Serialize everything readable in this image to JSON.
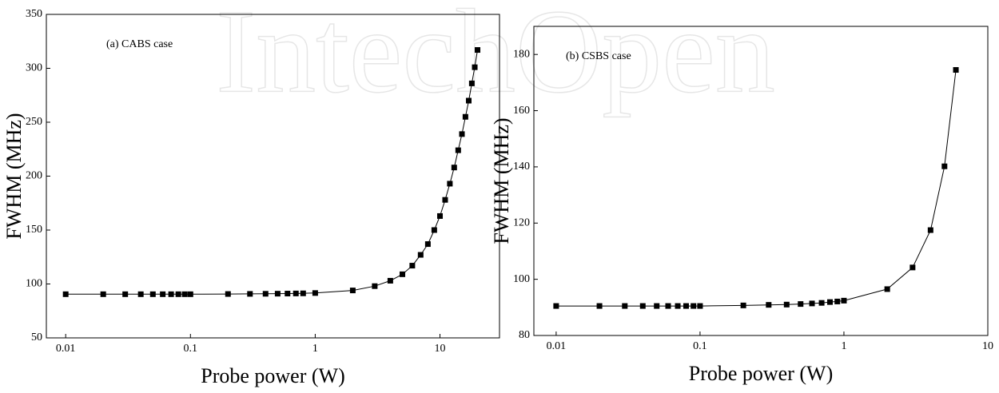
{
  "watermark": "IntechOpen",
  "chart_data": [
    {
      "type": "line",
      "annotation": "(a) CABS case",
      "x_label": "Probe power (W)",
      "y_label": "FWHM (MHz)",
      "log_x": true,
      "color": "#000000",
      "x": [
        0.01,
        0.02,
        0.03,
        0.04,
        0.05,
        0.06,
        0.07,
        0.08,
        0.09,
        0.1,
        0.2,
        0.3,
        0.4,
        0.5,
        0.6,
        0.7,
        0.8,
        1,
        2,
        3,
        4,
        5,
        6,
        7,
        8,
        9,
        10,
        11,
        12,
        13,
        14,
        15,
        16,
        17,
        18,
        19,
        20
      ],
      "values": [
        90.5,
        90.5,
        90.5,
        90.5,
        90.5,
        90.5,
        90.5,
        90.5,
        90.5,
        90.5,
        90.7,
        90.8,
        90.9,
        91,
        91.1,
        91.2,
        91.3,
        91.6,
        94,
        98,
        103,
        109,
        117,
        127,
        137,
        150,
        163,
        178,
        193,
        208,
        224,
        239,
        255,
        270,
        286,
        301,
        317
      ],
      "xlim": [
        0.007,
        30
      ],
      "xticks": [
        0.01,
        0.1,
        1,
        10
      ],
      "ylim": [
        50,
        350
      ],
      "yticks": [
        50,
        100,
        150,
        200,
        250,
        300,
        350
      ]
    },
    {
      "type": "line",
      "annotation": "(b) CSBS case",
      "x_label": "Probe power (W)",
      "y_label": "FWHM (MHz)",
      "log_x": true,
      "color": "#000000",
      "x": [
        0.01,
        0.02,
        0.03,
        0.04,
        0.05,
        0.06,
        0.07,
        0.08,
        0.09,
        0.1,
        0.2,
        0.3,
        0.4,
        0.5,
        0.6,
        0.7,
        0.8,
        0.9,
        1,
        2,
        3,
        4,
        5,
        6
      ],
      "values": [
        90.5,
        90.5,
        90.5,
        90.5,
        90.5,
        90.5,
        90.5,
        90.5,
        90.5,
        90.5,
        90.7,
        90.9,
        91,
        91.2,
        91.4,
        91.6,
        91.9,
        92.1,
        92.4,
        96.5,
        104.2,
        117.5,
        140.2,
        174.5
      ],
      "xlim": [
        0.007,
        10
      ],
      "xticks": [
        0.01,
        0.1,
        1,
        10
      ],
      "ylim": [
        80,
        190
      ],
      "yticks": [
        80,
        100,
        120,
        140,
        160,
        180
      ]
    }
  ]
}
